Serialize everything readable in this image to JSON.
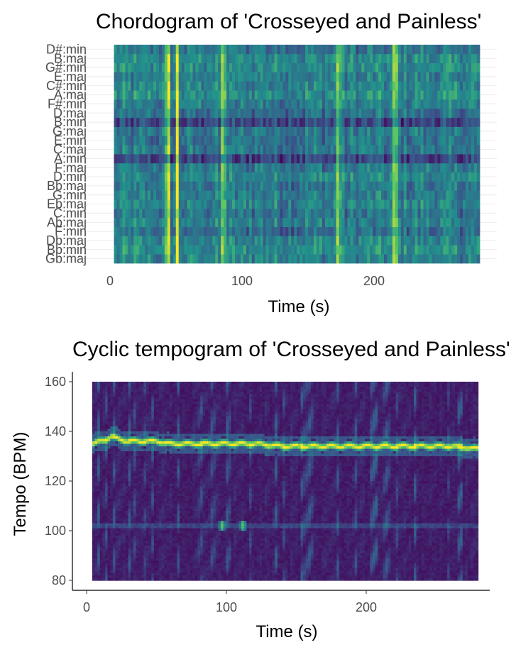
{
  "chart_data": [
    {
      "type": "heatmap",
      "title": "Chordogram of 'Crosseyed and Painless'",
      "xlabel": "Time (s)",
      "ylabel": "",
      "xlim": [
        0,
        280
      ],
      "x_ticks": [
        0,
        100,
        200
      ],
      "y_categories": [
        "Gb:maj",
        "Bb:min",
        "Db:maj",
        "F:min",
        "Ab:maj",
        "C:min",
        "Eb:maj",
        "G:min",
        "Bb:maj",
        "D:min",
        "F:maj",
        "A:min",
        "C:maj",
        "E:min",
        "G:maj",
        "B:min",
        "D:maj",
        "F#:min",
        "A:maj",
        "C#:min",
        "E:maj",
        "G#:min",
        "B:maj",
        "D#:min"
      ],
      "colormap": [
        "#440154",
        "#3b528b",
        "#21918c",
        "#5ec962",
        "#fde725"
      ],
      "highlight_times": [
        44,
        51,
        86,
        173,
        216
      ],
      "dark_rows": [
        "B:min",
        "A:min"
      ],
      "grid": true
    },
    {
      "type": "heatmap",
      "title": "Cyclic tempogram of 'Crosseyed and Painless'",
      "xlabel": "Time (s)",
      "ylabel": "Tempo (BPM)",
      "xlim": [
        0,
        280
      ],
      "ylim": [
        80,
        160
      ],
      "x_ticks": [
        0,
        100,
        200
      ],
      "y_ticks": [
        80,
        100,
        120,
        140,
        160
      ],
      "colormap": [
        "#440154",
        "#3b528b",
        "#21918c",
        "#5ec962",
        "#fde725"
      ],
      "tempo_line": {
        "x": [
          5,
          10,
          15,
          18,
          22,
          30,
          40,
          50,
          60,
          80,
          100,
          120,
          140,
          160,
          180,
          200,
          220,
          240,
          260,
          280
        ],
        "y": [
          135,
          136,
          137,
          138,
          137,
          136,
          136,
          136,
          135,
          135,
          135,
          135,
          134,
          134,
          134,
          134,
          134,
          134,
          134,
          133
        ]
      },
      "secondary_band_bpm": 102,
      "hot_spots": [
        {
          "x": 97,
          "y": 102
        },
        {
          "x": 112,
          "y": 102
        }
      ],
      "grid": false
    }
  ]
}
